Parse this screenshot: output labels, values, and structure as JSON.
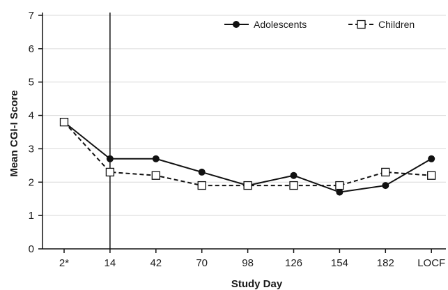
{
  "chart_data": {
    "type": "line",
    "title": "",
    "xlabel": "Study Day",
    "ylabel": "Mean CGI-I Score",
    "categories": [
      "2*",
      "14",
      "42",
      "70",
      "98",
      "126",
      "154",
      "182",
      "LOCF"
    ],
    "ylim": [
      0,
      7
    ],
    "yticks": [
      "0",
      "1",
      "2",
      "3",
      "4",
      "5",
      "6",
      "7"
    ],
    "grid": "horizontal",
    "legend_position": "top-right",
    "reference_line_at": "14",
    "series": [
      {
        "name": "Adolescents",
        "values": [
          3.8,
          2.7,
          2.7,
          2.3,
          1.9,
          2.2,
          1.7,
          1.9,
          2.7
        ],
        "marker": "filled-circle",
        "line_style": "solid",
        "color": "#111111"
      },
      {
        "name": "Children",
        "values": [
          3.8,
          2.3,
          2.2,
          1.9,
          1.9,
          1.9,
          1.9,
          2.3,
          2.2
        ],
        "marker": "open-square",
        "line_style": "dashed",
        "color": "#111111"
      }
    ],
    "colors": {
      "axis": "#111111",
      "grid": "#d9d9d9"
    }
  }
}
